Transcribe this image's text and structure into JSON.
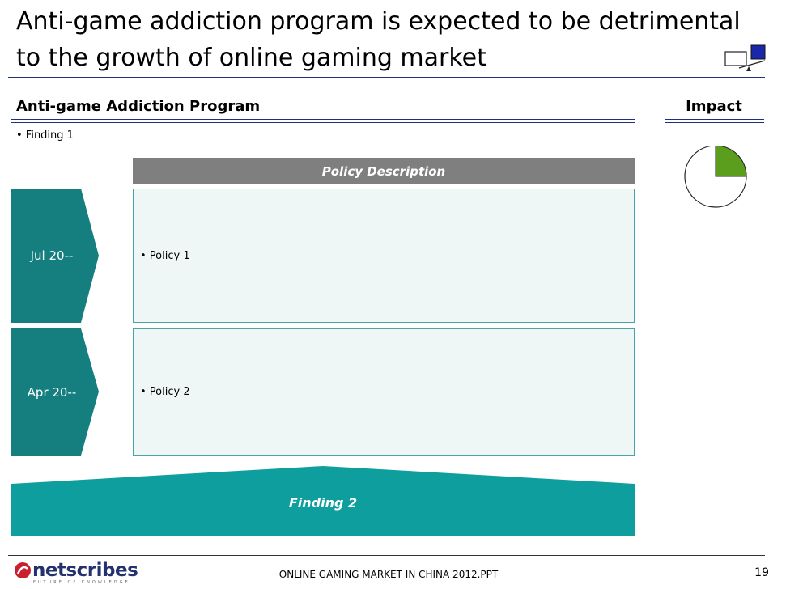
{
  "title": {
    "line1": "Anti-game addiction program is expected to be detrimental",
    "line2": "to the growth of online gaming market"
  },
  "sections": {
    "program_label": "Anti-game Addiction Program",
    "impact_label": "Impact"
  },
  "finding1": "• Finding 1",
  "policy_header": "Policy Description",
  "timeline": [
    {
      "date": "Jul 20--",
      "policy": "• Policy 1"
    },
    {
      "date": "Apr 20--",
      "policy": "• Policy 2"
    }
  ],
  "finding2": "Finding 2",
  "impact_pie": {
    "filled_fraction": 0.25,
    "fill_color": "#5b9e1e"
  },
  "colors": {
    "teal_dark": "#157f80",
    "teal": "#0f9e9e",
    "navy": "#1f2f7a",
    "header_gray": "#7f7f7f"
  },
  "footer": {
    "logo": "netscribes",
    "tagline": "FUTURE OF KNOWLEDGE",
    "document": "ONLINE GAMING MARKET IN CHINA 2012.PPT",
    "page": "19"
  }
}
